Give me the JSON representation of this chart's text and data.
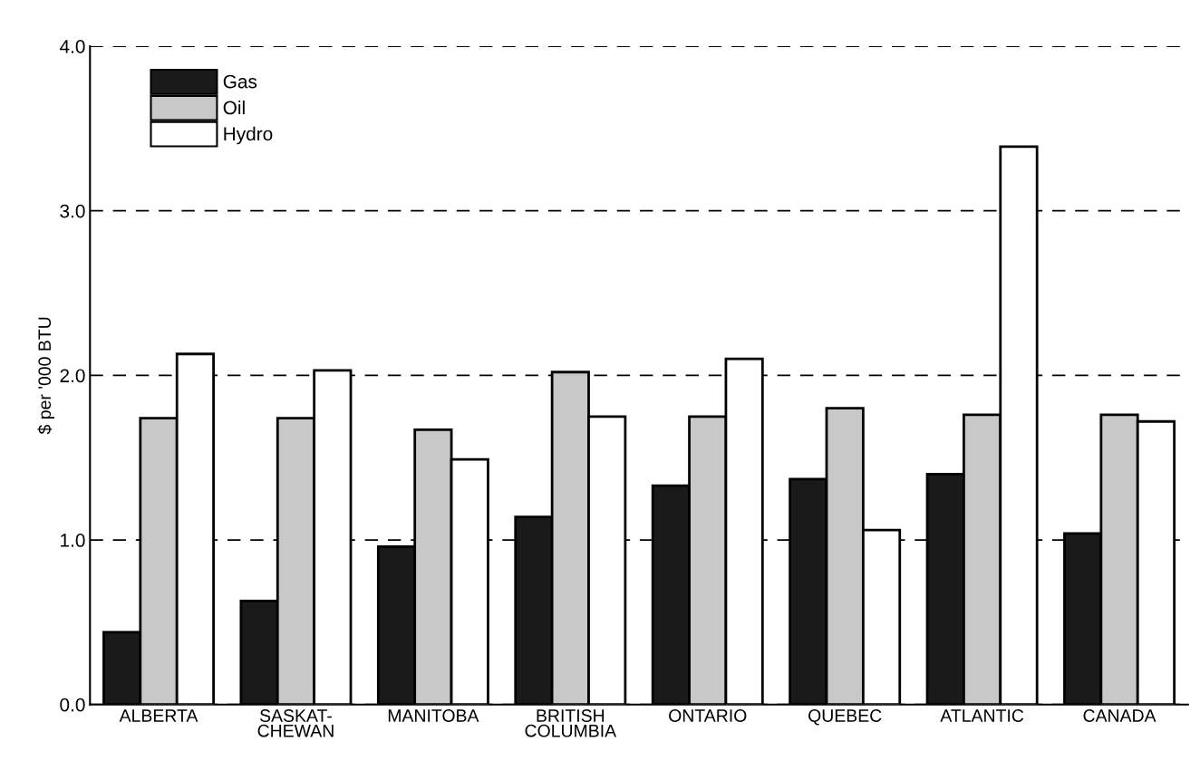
{
  "chart_data": {
    "type": "bar",
    "ylabel": "$ per '000 BTU",
    "categories": [
      "ALBERTA",
      "SASKAT-\nCHEWAN",
      "MANITOBA",
      "BRITISH\nCOLUMBIA",
      "ONTARIO",
      "QUEBEC",
      "ATLANTIC",
      "CANADA"
    ],
    "series": [
      {
        "name": "Gas",
        "color": "#1a1a1a",
        "values": [
          0.44,
          0.63,
          0.96,
          1.14,
          1.33,
          1.37,
          1.4,
          1.04
        ]
      },
      {
        "name": "Oil",
        "color": "#c8c8c8",
        "values": [
          1.74,
          1.74,
          1.67,
          2.02,
          1.75,
          1.8,
          1.76,
          1.76
        ]
      },
      {
        "name": "Hydro",
        "color": "#ffffff",
        "values": [
          2.13,
          2.03,
          1.49,
          1.75,
          2.1,
          1.06,
          3.39,
          1.72
        ]
      }
    ],
    "ylim": [
      0,
      4
    ],
    "yticks": [
      {
        "value": 0,
        "label": "0.0"
      },
      {
        "value": 1,
        "label": "1.0"
      },
      {
        "value": 2,
        "label": "2.0"
      },
      {
        "value": 3,
        "label": "3.0"
      },
      {
        "value": 4,
        "label": "4.0"
      }
    ],
    "grid": "y",
    "line_style": "dashed",
    "legend": "top left"
  }
}
